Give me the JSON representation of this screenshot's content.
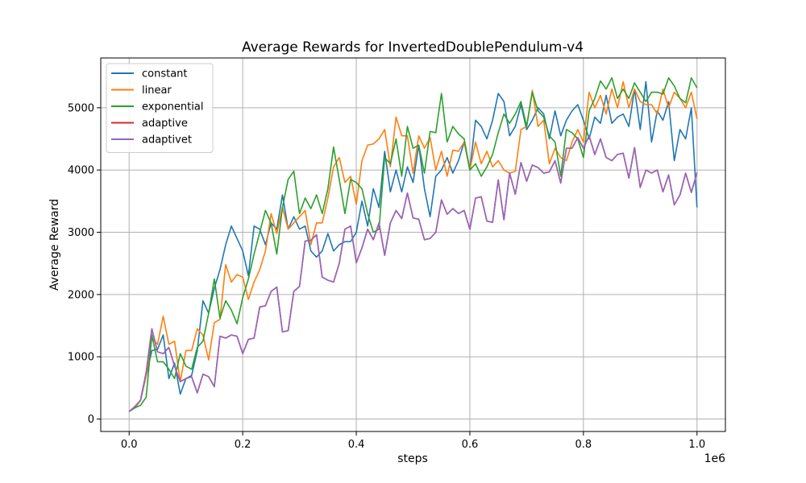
{
  "chart_data": {
    "type": "line",
    "title": "Average Rewards for InvertedDoublePendulum-v4",
    "xlabel": "steps",
    "ylabel": "Average Reward",
    "x_offset_label": "1e6",
    "xlim": [
      -0.05,
      1.05
    ],
    "ylim": [
      -200,
      5800
    ],
    "xticks": [
      0.0,
      0.2,
      0.4,
      0.6,
      0.8,
      1.0
    ],
    "xtick_labels": [
      "0.0",
      "0.2",
      "0.4",
      "0.6",
      "0.8",
      "1.0"
    ],
    "yticks": [
      0,
      1000,
      2000,
      3000,
      4000,
      5000
    ],
    "ytick_labels": [
      "0",
      "1000",
      "2000",
      "3000",
      "4000",
      "5000"
    ],
    "grid": true,
    "legend_position": "top-left",
    "x": [
      0.0,
      0.01,
      0.02,
      0.03,
      0.04,
      0.05,
      0.06,
      0.07,
      0.08,
      0.09,
      0.1,
      0.11,
      0.12,
      0.13,
      0.14,
      0.15,
      0.16,
      0.17,
      0.18,
      0.19,
      0.2,
      0.21,
      0.22,
      0.23,
      0.24,
      0.25,
      0.26,
      0.27,
      0.28,
      0.29,
      0.3,
      0.31,
      0.32,
      0.33,
      0.34,
      0.35,
      0.36,
      0.37,
      0.38,
      0.39,
      0.4,
      0.41,
      0.42,
      0.43,
      0.44,
      0.45,
      0.46,
      0.47,
      0.48,
      0.49,
      0.5,
      0.51,
      0.52,
      0.53,
      0.54,
      0.55,
      0.56,
      0.57,
      0.58,
      0.59,
      0.6,
      0.61,
      0.62,
      0.63,
      0.64,
      0.65,
      0.66,
      0.67,
      0.68,
      0.69,
      0.7,
      0.71,
      0.72,
      0.73,
      0.74,
      0.75,
      0.76,
      0.77,
      0.78,
      0.79,
      0.8,
      0.81,
      0.82,
      0.83,
      0.84,
      0.85,
      0.86,
      0.87,
      0.88,
      0.89,
      0.9,
      0.91,
      0.92,
      0.93,
      0.94,
      0.95,
      0.96,
      0.97,
      0.98,
      0.99,
      1.0
    ],
    "series": [
      {
        "name": "constant",
        "color": "#1f77b4",
        "values": [
          120,
          180,
          300,
          700,
          1100,
          1120,
          1350,
          650,
          900,
          400,
          650,
          700,
          1100,
          1900,
          1700,
          2100,
          2400,
          2800,
          3100,
          2900,
          2700,
          2300,
          3100,
          3050,
          2800,
          3150,
          3050,
          3600,
          3050,
          3250,
          3050,
          3100,
          2700,
          2600,
          2700,
          2980,
          2700,
          2800,
          2850,
          2850,
          3000,
          3500,
          3100,
          3700,
          3400,
          4300,
          3650,
          4000,
          3650,
          4050,
          3800,
          4400,
          3700,
          3250,
          3900,
          4000,
          4200,
          3950,
          4150,
          4450,
          4000,
          4800,
          4700,
          4500,
          4800,
          5230,
          5100,
          4550,
          4700,
          5050,
          4650,
          4800,
          5000,
          4900,
          4500,
          4950,
          4550,
          4800,
          4950,
          5050,
          4800,
          4500,
          4850,
          4750,
          5200,
          4750,
          4850,
          4900,
          4700,
          5300,
          4650,
          5420,
          4450,
          4950,
          4800,
          5100,
          4150,
          4650,
          4500,
          5000,
          3400
        ]
      },
      {
        "name": "linear",
        "color": "#ff7f0e",
        "values": [
          120,
          180,
          300,
          700,
          1300,
          1200,
          1650,
          1200,
          1250,
          600,
          1100,
          1100,
          1450,
          1350,
          950,
          1550,
          1600,
          2480,
          2200,
          2320,
          2280,
          1920,
          2200,
          2400,
          2700,
          3300,
          2980,
          3400,
          3050,
          3150,
          3250,
          3350,
          2800,
          3150,
          3150,
          3550,
          4050,
          4200,
          3800,
          3900,
          3450,
          4150,
          4400,
          4420,
          4500,
          4650,
          4050,
          4850,
          4550,
          4550,
          3950,
          4550,
          4350,
          4520,
          4000,
          4300,
          3900,
          4320,
          4300,
          4450,
          4000,
          4450,
          4100,
          4300,
          4050,
          4150,
          4000,
          3950,
          3980,
          4650,
          4700,
          5280,
          4700,
          4800,
          4100,
          4350,
          4200,
          4150,
          4450,
          4650,
          4450,
          5250,
          5000,
          5200,
          4900,
          5300,
          5000,
          5420,
          5000,
          5300,
          5100,
          5050,
          5050,
          4900,
          5300,
          5000,
          5250,
          5150,
          5000,
          5250,
          4820
        ]
      },
      {
        "name": "exponential",
        "color": "#2ca02c",
        "values": [
          120,
          180,
          220,
          350,
          1350,
          920,
          920,
          800,
          650,
          1050,
          850,
          800,
          1150,
          1250,
          1700,
          2250,
          1620,
          1900,
          1750,
          1530,
          1950,
          2250,
          2650,
          3000,
          3350,
          3150,
          2650,
          3400,
          3850,
          3980,
          3300,
          3550,
          3380,
          3600,
          3300,
          3700,
          4370,
          3850,
          3300,
          3850,
          3800,
          3700,
          3300,
          3000,
          3050,
          4200,
          4100,
          4500,
          3900,
          4700,
          4350,
          4400,
          3950,
          4620,
          4600,
          5230,
          4450,
          4700,
          4580,
          4500,
          4000,
          4100,
          3900,
          4050,
          4250,
          4600,
          4900,
          4750,
          4900,
          5100,
          4700,
          5250,
          4950,
          4850,
          4550,
          4450,
          3900,
          4650,
          4600,
          4500,
          4200,
          4950,
          5150,
          5430,
          5300,
          5480,
          5150,
          5300,
          5150,
          5400,
          5250,
          5100,
          5250,
          5250,
          5220,
          5480,
          5350,
          5150,
          5080,
          5480,
          5320
        ]
      },
      {
        "name": "adaptive",
        "color": "#d62728",
        "values": [
          120,
          200,
          300,
          750,
          1450,
          1080,
          1050,
          1150,
          850,
          600,
          650,
          680,
          420,
          720,
          680,
          520,
          1330,
          1300,
          1350,
          1330,
          1050,
          1280,
          1300,
          1800,
          1820,
          2050,
          2120,
          1400,
          1420,
          2050,
          2130,
          2860,
          2870,
          2960,
          2280,
          2230,
          2200,
          2500,
          3050,
          3100,
          2510,
          2750,
          3050,
          2880,
          3150,
          2630,
          3150,
          3350,
          3220,
          3630,
          3230,
          3210,
          2880,
          2900,
          3000,
          3520,
          3290,
          3380,
          3300,
          3350,
          3050,
          3550,
          3570,
          3180,
          3160,
          3840,
          3200,
          3950,
          3610,
          4120,
          3820,
          4080,
          4040,
          3950,
          3970,
          4150,
          3790,
          4350,
          4350,
          4520,
          4350,
          4550,
          4250,
          4500,
          4200,
          4150,
          4250,
          4270,
          3870,
          4360,
          3720,
          4000,
          3950,
          4000,
          3650,
          3920,
          3440,
          3600,
          3950,
          3640,
          3960
        ]
      },
      {
        "name": "adaptivet",
        "color": "#9467bd",
        "values": [
          120,
          200,
          300,
          750,
          1450,
          1080,
          1050,
          1150,
          850,
          600,
          650,
          680,
          420,
          720,
          680,
          520,
          1330,
          1300,
          1350,
          1330,
          1050,
          1280,
          1300,
          1800,
          1820,
          2050,
          2120,
          1400,
          1420,
          2050,
          2130,
          2860,
          2870,
          2960,
          2280,
          2230,
          2200,
          2500,
          3050,
          3100,
          2510,
          2750,
          3050,
          2880,
          3150,
          2630,
          3150,
          3350,
          3220,
          3630,
          3230,
          3210,
          2880,
          2900,
          3000,
          3520,
          3290,
          3380,
          3300,
          3350,
          3050,
          3550,
          3570,
          3180,
          3160,
          3840,
          3200,
          3950,
          3610,
          4120,
          3820,
          4080,
          4040,
          3950,
          3970,
          4150,
          3790,
          4350,
          4350,
          4520,
          4350,
          4550,
          4250,
          4500,
          4200,
          4150,
          4250,
          4270,
          3870,
          4360,
          3720,
          4000,
          3950,
          4000,
          3650,
          3920,
          3440,
          3600,
          3950,
          3640,
          3960
        ]
      }
    ]
  }
}
